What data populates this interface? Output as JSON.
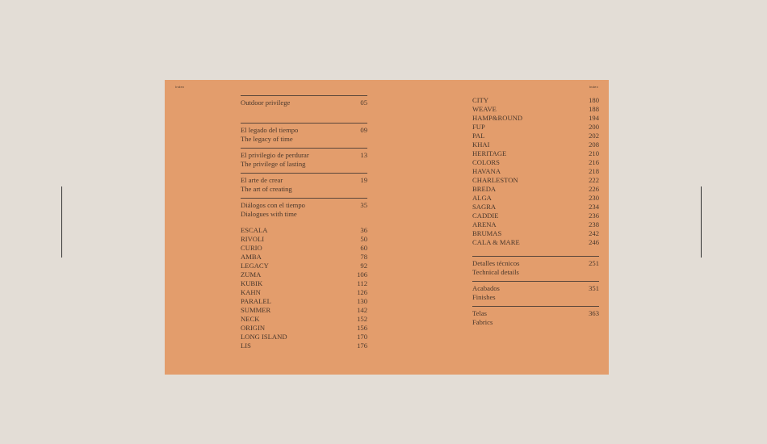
{
  "header": {
    "left": "Index",
    "right": "Index"
  },
  "left_sections": [
    {
      "title": "Outdoor privilege",
      "subtitle": "",
      "page": "05"
    },
    {
      "title": "El legado del tiempo",
      "subtitle": "The legacy of time",
      "page": "09"
    },
    {
      "title": "El privilegio de perdurar",
      "subtitle": "The privilege of lasting",
      "page": "13"
    },
    {
      "title": "El arte de crear",
      "subtitle": "The art of creating",
      "page": "19"
    },
    {
      "title": "Diálogos con el tiempo",
      "subtitle": "Dialogues with time",
      "page": "35"
    }
  ],
  "left_items": [
    [
      "ESCALA",
      "36"
    ],
    [
      "RIVOLI",
      "50"
    ],
    [
      "CURIO",
      "60"
    ],
    [
      "AMBA",
      "78"
    ],
    [
      "LEGACY",
      "92"
    ],
    [
      "ZUMA",
      "106"
    ],
    [
      "KUBIK",
      "112"
    ],
    [
      "KAHN",
      "126"
    ],
    [
      "PARALEL",
      "130"
    ],
    [
      "SUMMER",
      "142"
    ],
    [
      "NECK",
      "152"
    ],
    [
      "ORIGIN",
      "156"
    ],
    [
      "LONG ISLAND",
      "170"
    ],
    [
      "LIS",
      "176"
    ]
  ],
  "right_items": [
    [
      "CITY",
      "180"
    ],
    [
      "WEAVE",
      "188"
    ],
    [
      "HAMP&ROUND",
      "194"
    ],
    [
      "FUP",
      "200"
    ],
    [
      "PAL",
      "202"
    ],
    [
      "KHAI",
      "208"
    ],
    [
      "HERITAGE",
      "210"
    ],
    [
      "COLORS",
      "216"
    ],
    [
      "HAVANA",
      "218"
    ],
    [
      "CHARLESTON",
      "222"
    ],
    [
      "BREDA",
      "226"
    ],
    [
      "ALGA",
      "230"
    ],
    [
      "SAGRA",
      "234"
    ],
    [
      "CADDIE",
      "236"
    ],
    [
      "ARENA",
      "238"
    ],
    [
      "BRUMAS",
      "242"
    ],
    [
      "CALA & MARE",
      "246"
    ]
  ],
  "right_sections": [
    {
      "title": "Detalles técnicos",
      "subtitle": "Technical details",
      "page": "251"
    },
    {
      "title": "Acabados",
      "subtitle": "Finishes",
      "page": "351"
    },
    {
      "title": "Telas",
      "subtitle": "Fabrics",
      "page": "363"
    }
  ],
  "colors": {
    "page": "#e39d6c",
    "background": "#e3ddd6",
    "text": "#4a382c"
  }
}
